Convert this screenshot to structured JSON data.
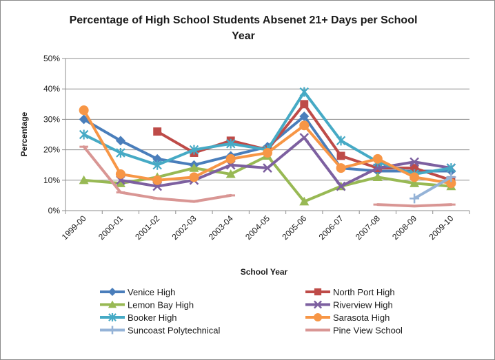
{
  "chart_data": {
    "type": "line",
    "title": "Percentage of High School Students Absenet 21+ Days per School Year",
    "title_lines": [
      "Percentage of High School Students Absenet 21+ Days per School",
      "Year"
    ],
    "xlabel": "School Year",
    "ylabel": "Percentage",
    "categories": [
      "1999-00",
      "2000-01",
      "2001-02",
      "2002-03",
      "2003-04",
      "2004-05",
      "2005-06",
      "2006-07",
      "2007-08",
      "2008-09",
      "2009-10"
    ],
    "ylim": [
      0,
      50
    ],
    "yticks": [
      "0%",
      "10%",
      "20%",
      "30%",
      "40%",
      "50%"
    ],
    "grid": "horizontal major",
    "legend_position": "bottom",
    "series": [
      {
        "name": "Venice High",
        "color": "#4a7ebb",
        "marker": "diamond",
        "values": [
          30,
          23,
          17,
          15,
          18,
          21,
          31,
          14,
          13,
          13,
          13
        ]
      },
      {
        "name": "North Port High",
        "color": "#be4b48",
        "marker": "square",
        "values": [
          null,
          null,
          26,
          19,
          23,
          20,
          35,
          18,
          14,
          14,
          10
        ]
      },
      {
        "name": "Lemon Bay High",
        "color": "#98b954",
        "marker": "triangle",
        "values": [
          10,
          9,
          11,
          14,
          12,
          18,
          3,
          8,
          11,
          9,
          8
        ]
      },
      {
        "name": "Riverview High",
        "color": "#7d60a0",
        "marker": "x",
        "values": [
          null,
          10,
          8,
          10,
          15,
          14,
          24,
          8,
          14,
          16,
          14
        ]
      },
      {
        "name": "Booker High",
        "color": "#46aac5",
        "marker": "star",
        "values": [
          25,
          19,
          15,
          20,
          22,
          20,
          39,
          23,
          16,
          12,
          14
        ]
      },
      {
        "name": "Sarasota High",
        "color": "#f79646",
        "marker": "circle",
        "values": [
          33,
          12,
          10,
          11,
          17,
          19,
          28,
          14,
          17,
          11,
          9
        ]
      },
      {
        "name": "Suncoast Polytechnical",
        "color": "#95b3d7",
        "marker": "plus",
        "values": [
          null,
          null,
          null,
          null,
          null,
          null,
          null,
          null,
          null,
          4,
          11
        ]
      },
      {
        "name": "Pine View School",
        "color": "#d99694",
        "marker": "dash",
        "values": [
          21,
          6,
          4,
          3,
          5,
          null,
          null,
          null,
          2,
          1.5,
          2
        ]
      }
    ]
  }
}
